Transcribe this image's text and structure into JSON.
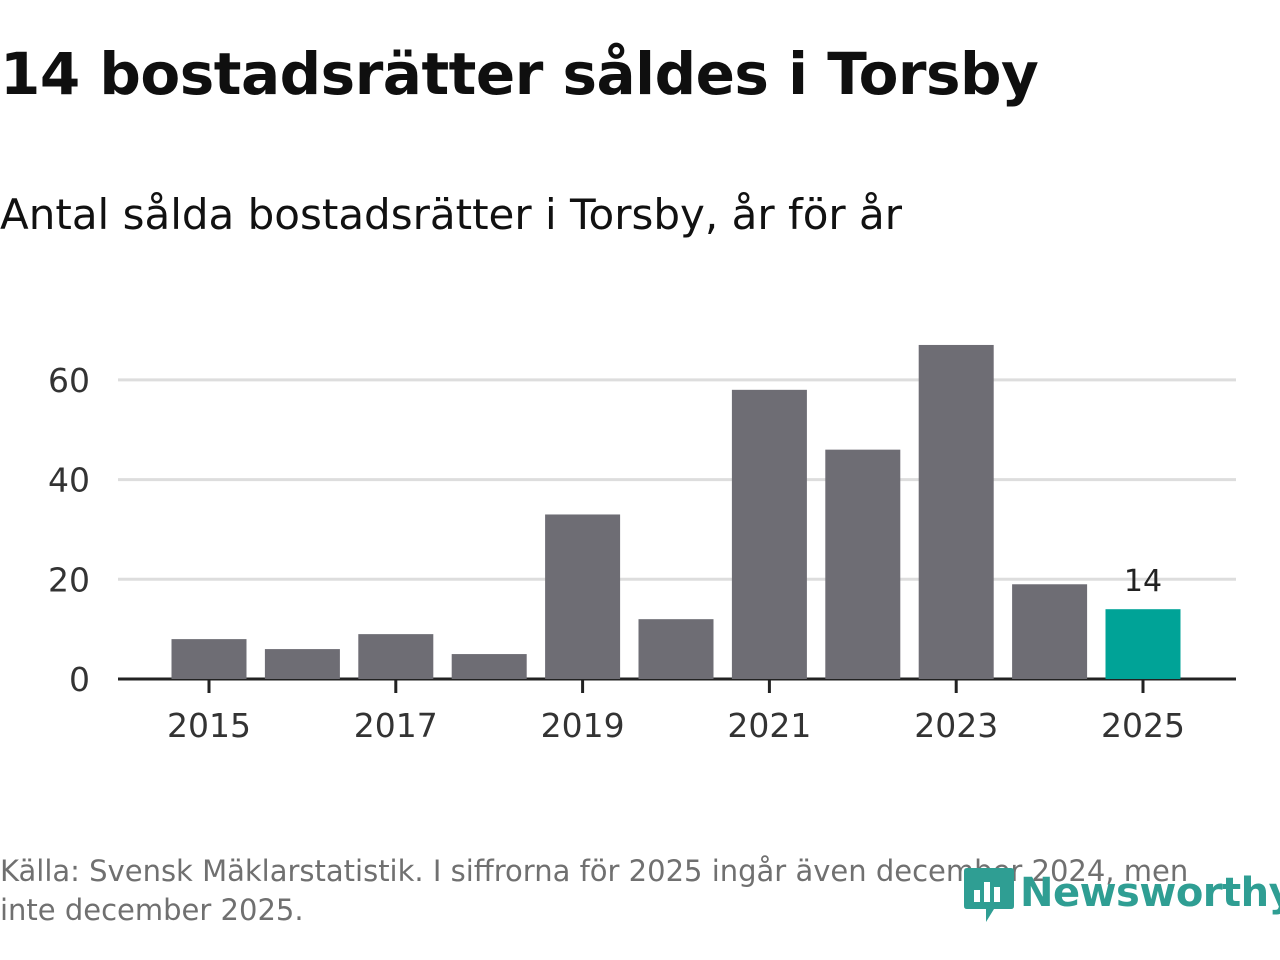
{
  "header": {
    "title": "14 bostadsrätter såldes i Torsby",
    "subtitle": "Antal sålda bostadsrätter i Torsby, år för år"
  },
  "footer": {
    "source": "Källa: Svensk Mäklarstatistik. I siffrorna för 2025 ingår även december 2024, men inte december 2025."
  },
  "logo": {
    "name": "Newsworthy"
  },
  "colors": {
    "bar": "#6e6d74",
    "highlight": "#00a397",
    "grid": "#dddddd",
    "axis": "#222222",
    "logo": "#2f9e93"
  },
  "chart_data": {
    "type": "bar",
    "title": "14 bostadsrätter såldes i Torsby",
    "subtitle": "Antal sålda bostadsrätter i Torsby, år för år",
    "xlabel": "",
    "ylabel": "",
    "categories": [
      "2015",
      "2016",
      "2017",
      "2018",
      "2019",
      "2020",
      "2021",
      "2022",
      "2023",
      "2024",
      "2025"
    ],
    "values": [
      8,
      6,
      9,
      5,
      33,
      12,
      58,
      46,
      67,
      19,
      14
    ],
    "x_tick_labels": [
      "2015",
      "2017",
      "2019",
      "2021",
      "2023",
      "2025"
    ],
    "y_ticks": [
      0,
      20,
      40,
      60
    ],
    "ylim": [
      0,
      70
    ],
    "grid": true,
    "highlight_category": "2025",
    "data_labels": [
      {
        "category": "2025",
        "text": "14"
      }
    ]
  }
}
